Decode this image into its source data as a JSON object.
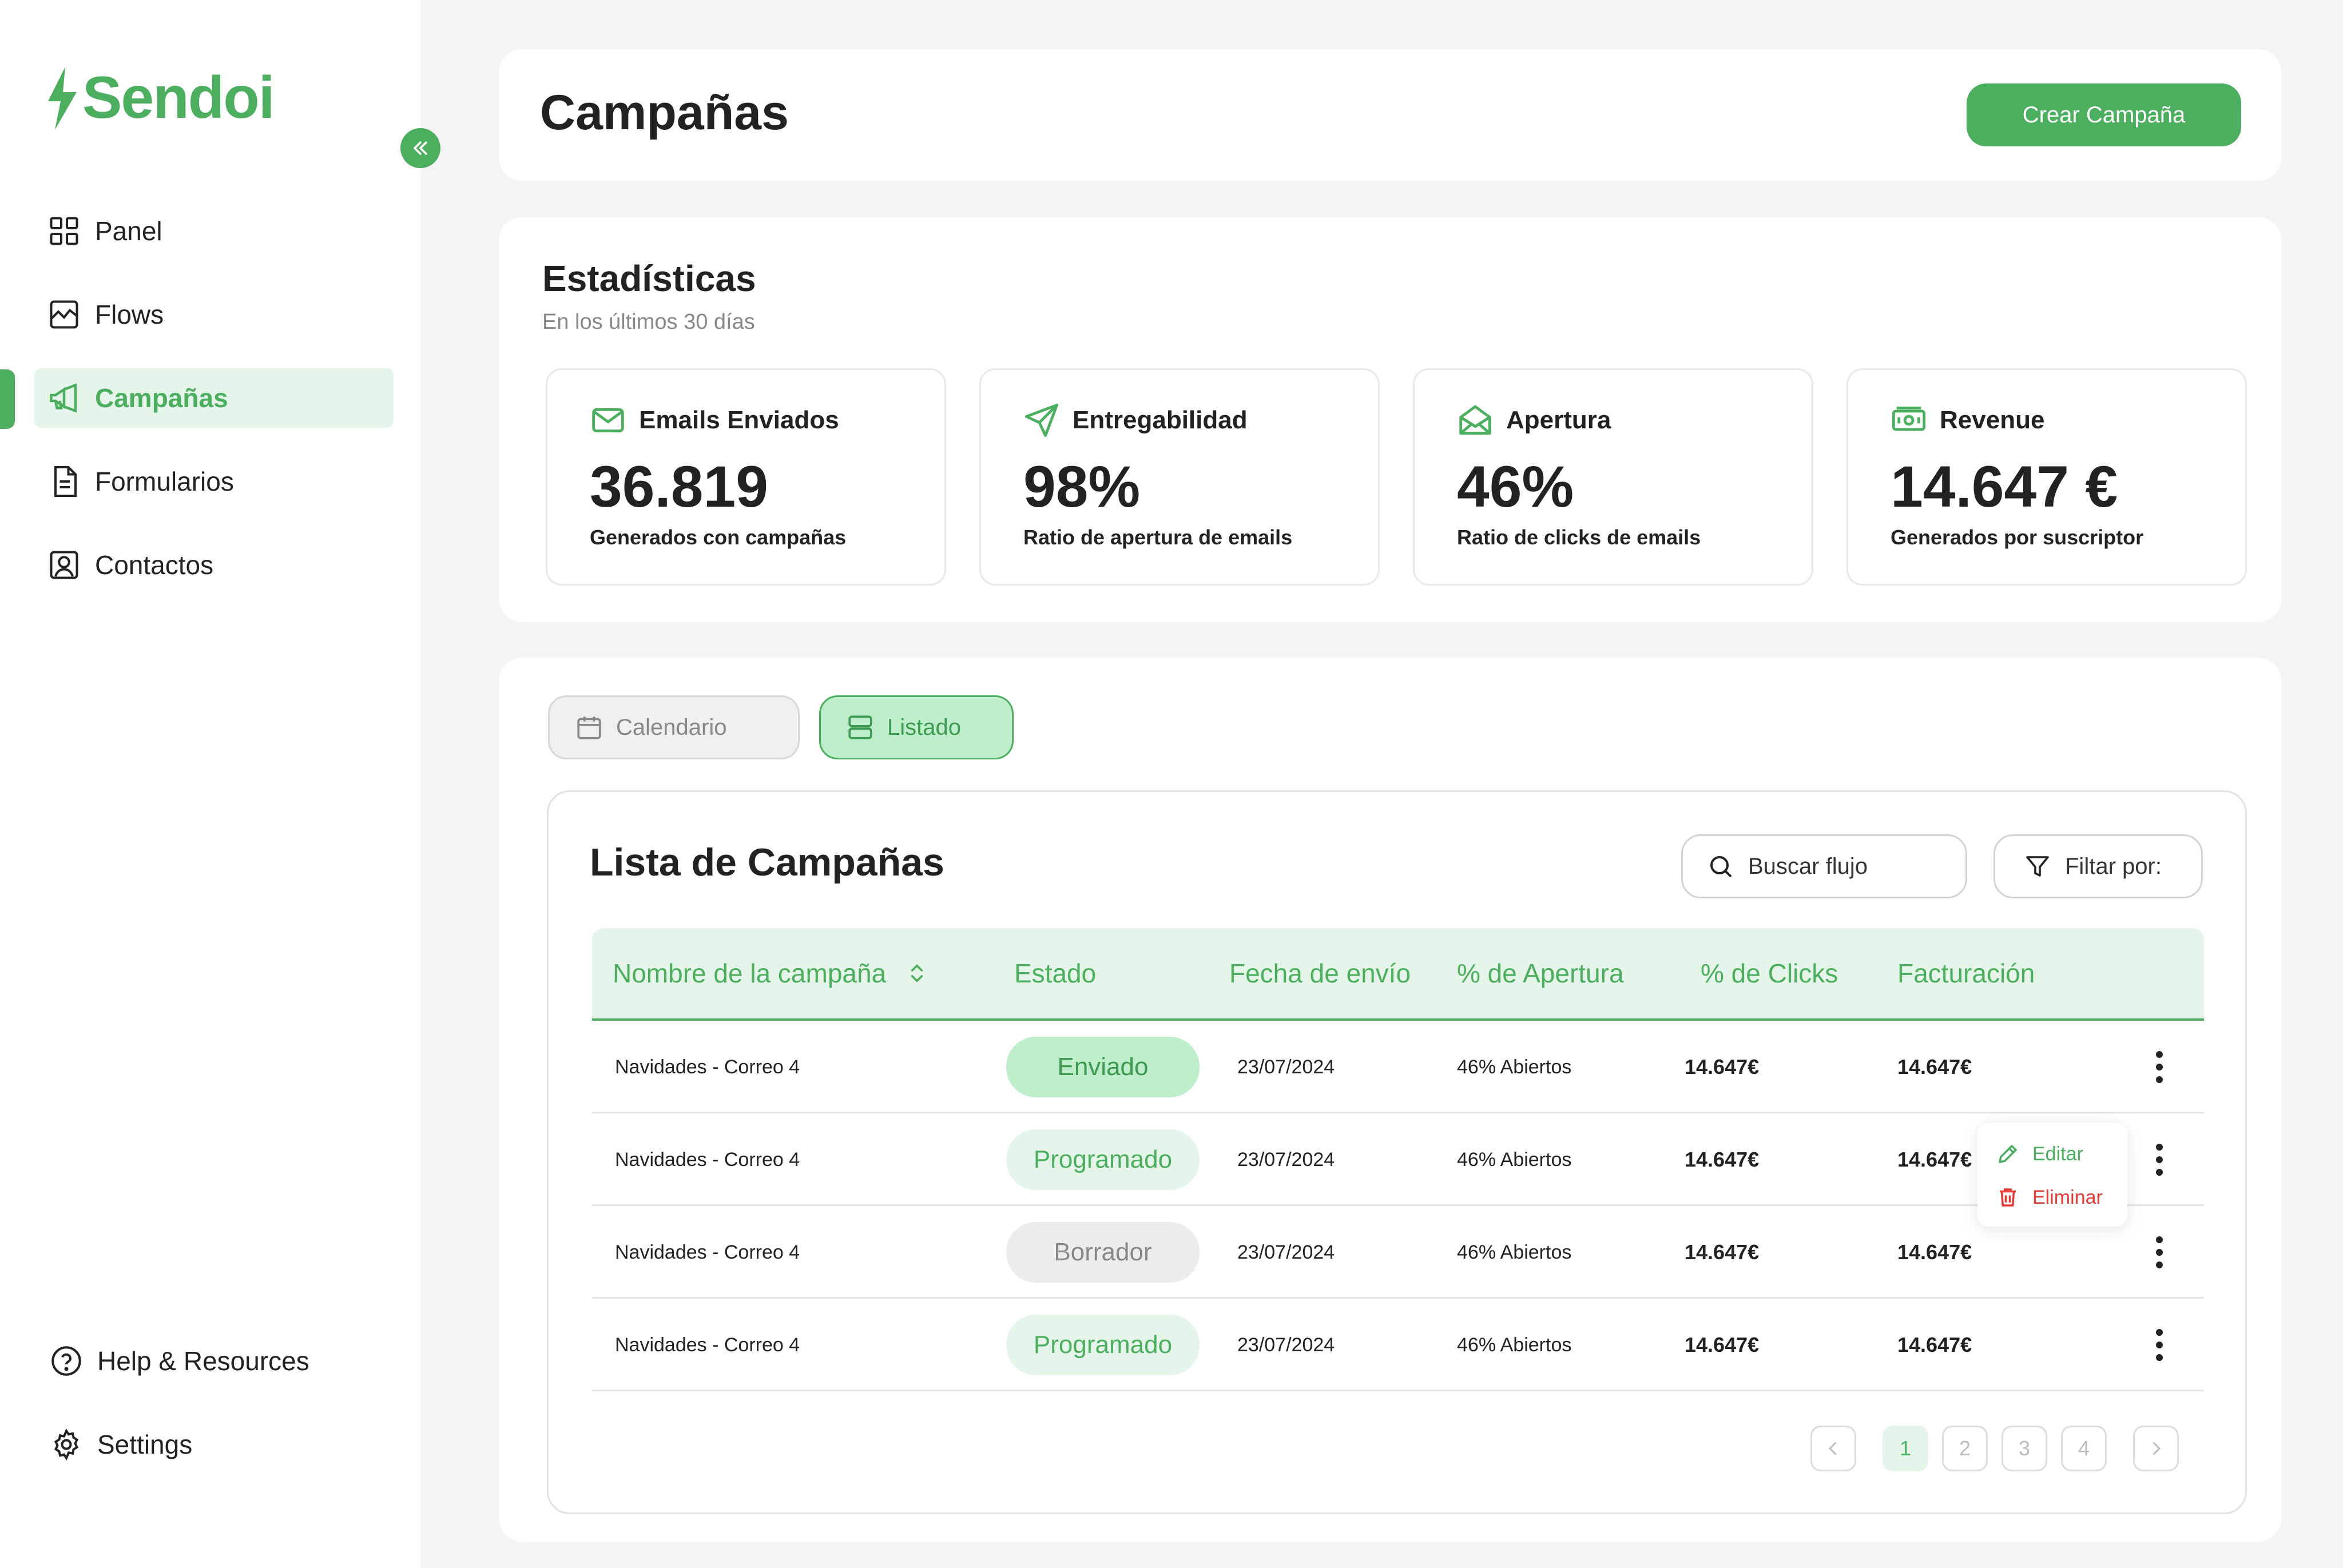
{
  "brand": {
    "name": "Sendoi",
    "color": "#4caf5f"
  },
  "sidebar": {
    "collapse_icon": "chevrons-left-icon",
    "items": [
      {
        "label": "Panel",
        "icon": "grid-icon",
        "active": false
      },
      {
        "label": "Flows",
        "icon": "chart-line-icon",
        "active": false
      },
      {
        "label": "Campañas",
        "icon": "megaphone-icon",
        "active": true
      },
      {
        "label": "Formularios",
        "icon": "document-icon",
        "active": false
      },
      {
        "label": "Contactos",
        "icon": "contact-icon",
        "active": false
      }
    ],
    "bottom": [
      {
        "label": "Help & Resources",
        "icon": "help-icon"
      },
      {
        "label": "Settings",
        "icon": "gear-icon"
      }
    ]
  },
  "header": {
    "title": "Campañas",
    "create_label": "Crear Campaña"
  },
  "stats": {
    "title": "Estadísticas",
    "subtitle": "En los últimos 30 días",
    "cards": [
      {
        "label": "Emails Enviados",
        "value": "36.819",
        "desc": "Generados con campañas",
        "icon": "mail-icon"
      },
      {
        "label": "Entregabilidad",
        "value": "98%",
        "desc": "Ratio de apertura de emails",
        "icon": "send-icon"
      },
      {
        "label": "Apertura",
        "value": "46%",
        "desc": "Ratio de clicks de emails",
        "icon": "mail-open-icon"
      },
      {
        "label": "Revenue",
        "value": "14.647 €",
        "desc": "Generados por suscriptor",
        "icon": "money-icon"
      }
    ]
  },
  "view_toggle": {
    "calendar_label": "Calendario",
    "list_label": "Listado",
    "active": "list"
  },
  "list": {
    "title": "Lista de Campañas",
    "search_placeholder": "Buscar flujo",
    "filter_label": "Filtar por:",
    "columns": [
      "Nombre de la campaña",
      "Estado",
      "Fecha de envío",
      "% de Apertura",
      "% de Clicks",
      "Facturación"
    ],
    "rows": [
      {
        "name": "Navidades - Correo 4",
        "status": "Enviado",
        "status_type": "enviado",
        "date": "23/07/2024",
        "open": "46% Abiertos",
        "clicks": "14.647€",
        "revenue": "14.647€"
      },
      {
        "name": "Navidades - Correo 4",
        "status": "Programado",
        "status_type": "programado",
        "date": "23/07/2024",
        "open": "46% Abiertos",
        "clicks": "14.647€",
        "revenue": "14.647€"
      },
      {
        "name": "Navidades - Correo 4",
        "status": "Borrador",
        "status_type": "borrador",
        "date": "23/07/2024",
        "open": "46% Abiertos",
        "clicks": "14.647€",
        "revenue": "14.647€"
      },
      {
        "name": "Navidades - Correo 4",
        "status": "Programado",
        "status_type": "programado",
        "date": "23/07/2024",
        "open": "46% Abiertos",
        "clicks": "14.647€",
        "revenue": "14.647€"
      }
    ],
    "row_menu": {
      "edit_label": "Editar",
      "delete_label": "Eliminar",
      "open_on_row": 2
    },
    "pagination": {
      "pages": [
        "1",
        "2",
        "3",
        "4"
      ],
      "current": "1"
    }
  }
}
